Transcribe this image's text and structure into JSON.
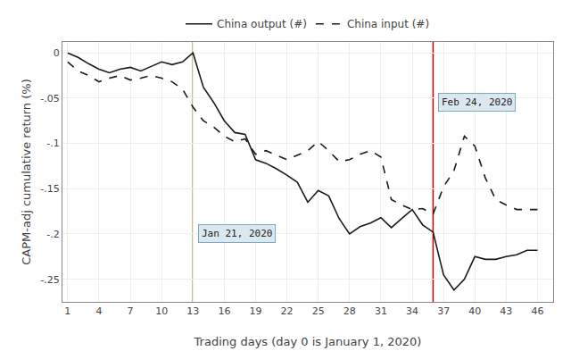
{
  "chart_data": {
    "type": "line",
    "xlabel": "Trading days (day 0 is January 1, 2020)",
    "ylabel": "CAPM-adj cumulative return (%)",
    "x": [
      1,
      2,
      3,
      4,
      5,
      6,
      7,
      8,
      9,
      10,
      11,
      12,
      13,
      14,
      15,
      16,
      17,
      18,
      19,
      20,
      21,
      22,
      23,
      24,
      25,
      26,
      27,
      28,
      29,
      30,
      31,
      32,
      33,
      34,
      35,
      36,
      37,
      38,
      39,
      40,
      41,
      42,
      43,
      44,
      45,
      46
    ],
    "series": [
      {
        "name": "China output (#)",
        "color": "#1a1a1a",
        "line_style": "solid",
        "values": [
          0.0,
          -0.005,
          -0.012,
          -0.018,
          -0.022,
          -0.018,
          -0.016,
          -0.02,
          -0.015,
          -0.01,
          -0.013,
          -0.01,
          0.0,
          -0.038,
          -0.055,
          -0.075,
          -0.088,
          -0.09,
          -0.118,
          -0.122,
          -0.128,
          -0.135,
          -0.143,
          -0.165,
          -0.152,
          -0.158,
          -0.183,
          -0.2,
          -0.192,
          -0.188,
          -0.182,
          -0.193,
          -0.183,
          -0.173,
          -0.19,
          -0.198,
          -0.245,
          -0.262,
          -0.25,
          -0.225,
          -0.228,
          -0.228,
          -0.225,
          -0.223,
          -0.218,
          -0.218
        ]
      },
      {
        "name": "China input (#)",
        "color": "#1a1a1a",
        "line_style": "dashed",
        "values": [
          -0.01,
          -0.02,
          -0.025,
          -0.032,
          -0.028,
          -0.025,
          -0.03,
          -0.028,
          -0.025,
          -0.028,
          -0.032,
          -0.04,
          -0.06,
          -0.075,
          -0.082,
          -0.092,
          -0.098,
          -0.095,
          -0.112,
          -0.108,
          -0.113,
          -0.118,
          -0.113,
          -0.108,
          -0.098,
          -0.108,
          -0.12,
          -0.118,
          -0.112,
          -0.108,
          -0.115,
          -0.162,
          -0.168,
          -0.173,
          -0.172,
          -0.178,
          -0.148,
          -0.13,
          -0.092,
          -0.103,
          -0.138,
          -0.162,
          -0.168,
          -0.173,
          -0.173,
          -0.173
        ]
      }
    ],
    "vlines": [
      {
        "x": 13,
        "color": "#808000"
      },
      {
        "x": 36,
        "color": "#cc0000"
      }
    ],
    "annotations": [
      {
        "x": 13,
        "y": -0.2,
        "text": "Jan 21, 2020"
      },
      {
        "x": 36,
        "y": -0.055,
        "text": "Feb 24, 2020"
      }
    ],
    "xlim": [
      0.5,
      47.5
    ],
    "xticks": [
      1,
      4,
      7,
      10,
      13,
      16,
      19,
      22,
      25,
      28,
      31,
      34,
      37,
      40,
      43,
      46
    ],
    "ylim": [
      -0.275,
      0.012
    ],
    "yticks": [
      0,
      {
        "value": -0.05,
        "label": "-.05"
      },
      {
        "value": -0.1,
        "label": "-.1"
      },
      {
        "value": -0.15,
        "label": "-.15"
      },
      {
        "value": -0.2,
        "label": "-.2"
      },
      {
        "value": -0.25,
        "label": "-.25"
      }
    ],
    "grid": true,
    "legend": "top"
  }
}
